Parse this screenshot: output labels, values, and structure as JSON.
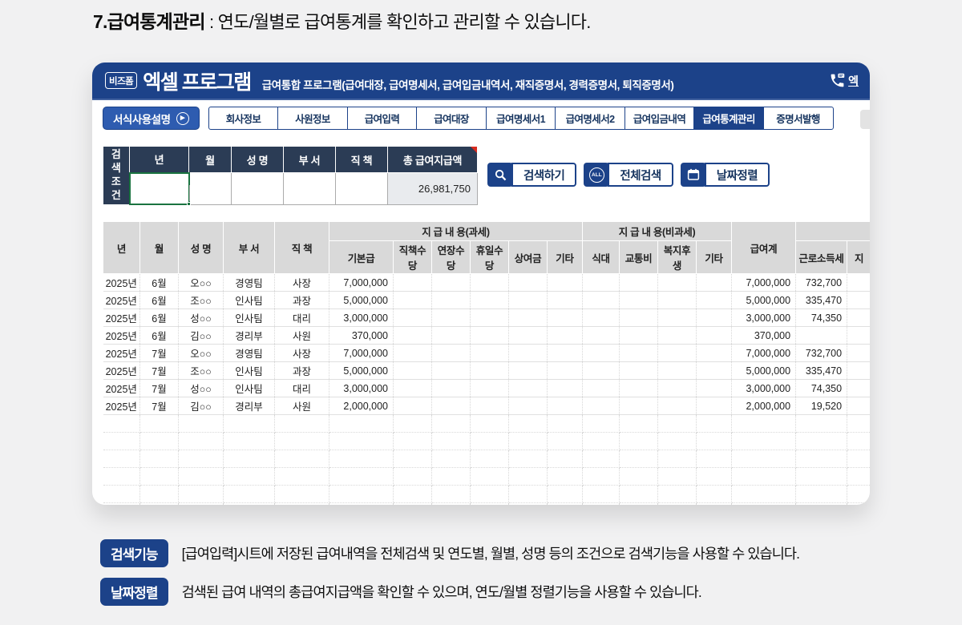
{
  "page": {
    "title_bold": "7.급여통계관리",
    "title_rest": " : 연도/월별로 급여통계를 확인하고 관리할 수 있습니다."
  },
  "window": {
    "logo_badge": "비즈폼",
    "logo_text": "엑셀 프로그램",
    "subtitle": "급여통합 프로그램(급여대장, 급여명세서, 급여입금내역서, 재직증명서, 경력증명서, 퇴직증명서)",
    "phone_partial": "엑"
  },
  "toolbar": {
    "guide_label": "서식사용설명",
    "tabs": [
      "회사정보",
      "사원정보",
      "급여입력",
      "급여대장",
      "급여명세서1",
      "급여명세서2",
      "급여입금내역",
      "급여통계관리",
      "증명서발행"
    ],
    "active_tab": "급여통계관리"
  },
  "search": {
    "label_line1": "검색",
    "label_line2": "조건",
    "columns": [
      "년",
      "월",
      "성 명",
      "부 서",
      "직 책",
      "총 급여지급액"
    ],
    "total_value": "26,981,750",
    "buttons": [
      {
        "label": "검색하기",
        "icon": "search-icon"
      },
      {
        "label": "전체검색",
        "icon": "all-icon"
      },
      {
        "label": "날짜정렬",
        "icon": "calendar-icon"
      }
    ]
  },
  "table": {
    "col_headers_left": [
      "년",
      "월",
      "성 명",
      "부 서",
      "직 책"
    ],
    "group_taxable": "지 급 내 용(과세)",
    "taxable_cols": [
      "기본급",
      "직책수당",
      "연장수당",
      "휴일수당",
      "상여금",
      "기타"
    ],
    "group_nontax": "지 급 내 용(비과세)",
    "nontax_cols": [
      "식대",
      "교통비",
      "복지후생",
      "기타"
    ],
    "total_col": "급여계",
    "tax_col": "근로소득세",
    "partial_col": "지",
    "rows": [
      {
        "year": "2025년",
        "month": "6월",
        "name": "오○○",
        "dept": "경영팀",
        "title": "사장",
        "base": "7,000,000",
        "total": "7,000,000",
        "tax": "732,700"
      },
      {
        "year": "2025년",
        "month": "6월",
        "name": "조○○",
        "dept": "인사팀",
        "title": "과장",
        "base": "5,000,000",
        "total": "5,000,000",
        "tax": "335,470"
      },
      {
        "year": "2025년",
        "month": "6월",
        "name": "성○○",
        "dept": "인사팀",
        "title": "대리",
        "base": "3,000,000",
        "total": "3,000,000",
        "tax": "74,350"
      },
      {
        "year": "2025년",
        "month": "6월",
        "name": "김○○",
        "dept": "경리부",
        "title": "사원",
        "base": "370,000",
        "total": "370,000",
        "tax": ""
      },
      {
        "year": "2025년",
        "month": "7월",
        "name": "오○○",
        "dept": "경영팀",
        "title": "사장",
        "base": "7,000,000",
        "total": "7,000,000",
        "tax": "732,700"
      },
      {
        "year": "2025년",
        "month": "7월",
        "name": "조○○",
        "dept": "인사팀",
        "title": "과장",
        "base": "5,000,000",
        "total": "5,000,000",
        "tax": "335,470"
      },
      {
        "year": "2025년",
        "month": "7월",
        "name": "성○○",
        "dept": "인사팀",
        "title": "대리",
        "base": "3,000,000",
        "total": "3,000,000",
        "tax": "74,350"
      },
      {
        "year": "2025년",
        "month": "7월",
        "name": "김○○",
        "dept": "경리부",
        "title": "사원",
        "base": "2,000,000",
        "total": "2,000,000",
        "tax": "19,520"
      }
    ],
    "filler_row_count": 7
  },
  "notes": [
    {
      "badge": "검색기능",
      "text": "[급여입력]시트에 저장된 급여내역을 전체검색 및 연도별, 월별, 성명 등의 조건으로 검색기능을 사용할 수 있습니다."
    },
    {
      "badge": "날짜정렬",
      "text": "검색된 급여 내역의 총급여지급액을 확인할 수 있으며, 연도/월별 정렬기능을 사용할 수 있습니다."
    }
  ],
  "colors": {
    "navy": "#1c4289",
    "search_header": "#2b3c55",
    "header_gray": "#d9d9d9",
    "comment_red": "#d92b1f",
    "selection_green": "#1a7340"
  }
}
